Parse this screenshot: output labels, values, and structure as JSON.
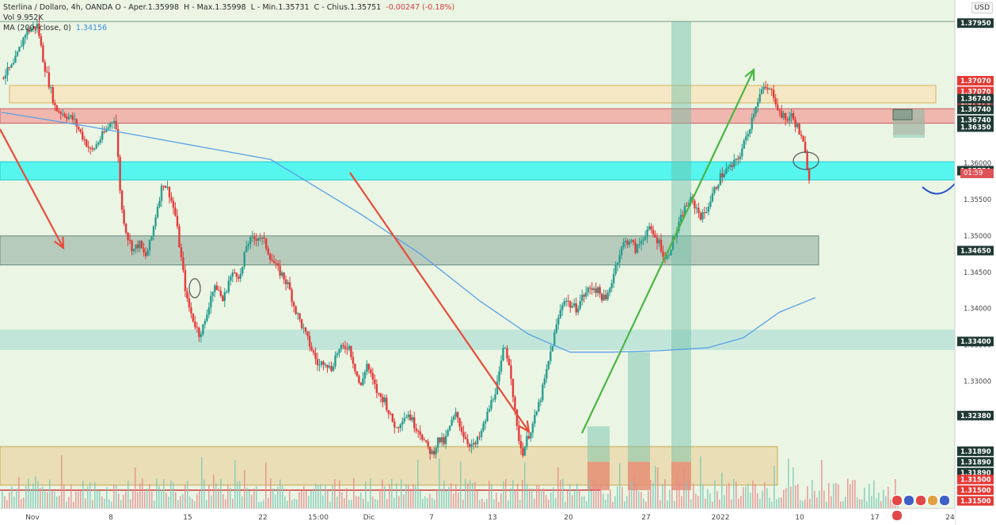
{
  "legend": {
    "symbol_line": "Sterlina / Dollaro, 4h, OANDA  O - Aper.",
    "open": "1.35998",
    "high_label": "H - Max.",
    "high": "1.35998",
    "low_label": "L - Min.",
    "low": "1.35731",
    "close_label": "C - Chius.",
    "close": "1.35751",
    "change": "-0.00247 (-0.18%)",
    "volume_label": "Vol",
    "volume": "9.952K",
    "ma_label": "MA (200, close, 0)",
    "ma_value": "1.34156"
  },
  "currency_label": "USD",
  "countdown": "01:59",
  "colors": {
    "up": "#2a9d8f",
    "down": "#e23b3b",
    "ma": "#5aa0e6",
    "bg": "#eaf5e4",
    "zone_cyan": "#3cf5f0",
    "zone_red": "#f0a8a0",
    "zone_sand": "#f8e2b8",
    "zone_gray": "#9ab3a6",
    "arrow_red": "#e84b3a",
    "arrow_green": "#4bb544"
  },
  "chart_data": {
    "type": "candlestick",
    "title": "Sterlina / Dollaro, 4h, OANDA",
    "ylim": [
      1.3125,
      1.3805
    ],
    "price_axis_ticks": [
      "1.36000",
      "1.35500",
      "1.35000",
      "1.34500",
      "1.34000",
      "1.33500",
      "1.33000",
      "1.32500",
      "1.32000"
    ],
    "price_axis_tags": [
      {
        "value": 1.3795,
        "label": "1.37950",
        "kind": "dark"
      },
      {
        "value": 1.3707,
        "label": "1.37070",
        "kind": "red"
      },
      {
        "value": 1.3707,
        "label": "1.37070",
        "kind": "red"
      },
      {
        "value": 1.3707,
        "label": "1.37070",
        "kind": "red"
      },
      {
        "value": 1.3674,
        "label": "1.36740",
        "kind": "dark"
      },
      {
        "value": 1.3674,
        "label": "1.36740",
        "kind": "dark"
      },
      {
        "value": 1.3674,
        "label": "1.36740",
        "kind": "dark"
      },
      {
        "value": 1.3635,
        "label": "1.36350",
        "kind": "dark"
      },
      {
        "value": 1.3575,
        "label": "1.35750",
        "kind": "dark"
      },
      {
        "value": 1.3465,
        "label": "1.34650",
        "kind": "dark"
      },
      {
        "value": 1.334,
        "label": "1.33400",
        "kind": "dark"
      },
      {
        "value": 1.3238,
        "label": "1.32380",
        "kind": "dark"
      },
      {
        "value": 1.3189,
        "label": "1.31890",
        "kind": "dark"
      },
      {
        "value": 1.3189,
        "label": "1.31890",
        "kind": "dark"
      },
      {
        "value": 1.3189,
        "label": "1.31890",
        "kind": "dark"
      },
      {
        "value": 1.315,
        "label": "1.31500",
        "kind": "red"
      },
      {
        "value": 1.315,
        "label": "1.31500",
        "kind": "red"
      },
      {
        "value": 1.315,
        "label": "1.31500",
        "kind": "red"
      }
    ],
    "x_ticks": [
      "Nov",
      "8",
      "15",
      "22",
      "15:00",
      "Dic",
      "7",
      "13",
      "20",
      "27",
      "2022",
      "10",
      "17",
      "24"
    ],
    "price_path": [
      [
        0,
        1.3718
      ],
      [
        2,
        1.3735
      ],
      [
        4,
        1.378
      ],
      [
        6,
        1.379
      ],
      [
        7,
        1.374
      ],
      [
        9,
        1.3675
      ],
      [
        12,
        1.366
      ],
      [
        14,
        1.363
      ],
      [
        15,
        1.3615
      ],
      [
        17,
        1.364
      ],
      [
        19,
        1.3665
      ],
      [
        20,
        1.354
      ],
      [
        21,
        1.35
      ],
      [
        22,
        1.348
      ],
      [
        23,
        1.349
      ],
      [
        24,
        1.347
      ],
      [
        25,
        1.3495
      ],
      [
        26,
        1.354
      ],
      [
        27,
        1.3575
      ],
      [
        28,
        1.356
      ],
      [
        29,
        1.353
      ],
      [
        30,
        1.347
      ],
      [
        31,
        1.341
      ],
      [
        32,
        1.3385
      ],
      [
        33,
        1.3365
      ],
      [
        34,
        1.338
      ],
      [
        35,
        1.342
      ],
      [
        36,
        1.343
      ],
      [
        37,
        1.341
      ],
      [
        38,
        1.344
      ],
      [
        39,
        1.345
      ],
      [
        40,
        1.3445
      ],
      [
        41,
        1.349
      ],
      [
        42,
        1.3495
      ],
      [
        43,
        1.35
      ],
      [
        44,
        1.349
      ],
      [
        45,
        1.347
      ],
      [
        46,
        1.3455
      ],
      [
        47,
        1.3445
      ],
      [
        48,
        1.343
      ],
      [
        49,
        1.34
      ],
      [
        50,
        1.338
      ],
      [
        51,
        1.336
      ],
      [
        52,
        1.334
      ],
      [
        53,
        1.332
      ],
      [
        54,
        1.333
      ],
      [
        55,
        1.3315
      ],
      [
        56,
        1.334
      ],
      [
        57,
        1.3345
      ],
      [
        58,
        1.335
      ],
      [
        59,
        1.332
      ],
      [
        60,
        1.329
      ],
      [
        61,
        1.3325
      ],
      [
        62,
        1.33
      ],
      [
        63,
        1.328
      ],
      [
        64,
        1.3275
      ],
      [
        65,
        1.325
      ],
      [
        66,
        1.3235
      ],
      [
        67,
        1.325
      ],
      [
        68,
        1.3255
      ],
      [
        69,
        1.324
      ],
      [
        70,
        1.323
      ],
      [
        71,
        1.321
      ],
      [
        72,
        1.32
      ],
      [
        73,
        1.322
      ],
      [
        74,
        1.3215
      ],
      [
        75,
        1.324
      ],
      [
        76,
        1.3255
      ],
      [
        77,
        1.323
      ],
      [
        78,
        1.3215
      ],
      [
        79,
        1.321
      ],
      [
        80,
        1.3225
      ],
      [
        81,
        1.325
      ],
      [
        82,
        1.3275
      ],
      [
        83,
        1.33
      ],
      [
        84,
        1.335
      ],
      [
        85,
        1.332
      ],
      [
        86,
        1.324
      ],
      [
        87,
        1.32
      ],
      [
        88,
        1.3225
      ],
      [
        89,
        1.3245
      ],
      [
        90,
        1.3275
      ],
      [
        91,
        1.331
      ],
      [
        92,
        1.335
      ],
      [
        93,
        1.3385
      ],
      [
        94,
        1.3415
      ],
      [
        95,
        1.3405
      ],
      [
        96,
        1.34
      ],
      [
        97,
        1.3415
      ],
      [
        98,
        1.3425
      ],
      [
        99,
        1.343
      ],
      [
        100,
        1.342
      ],
      [
        101,
        1.341
      ],
      [
        102,
        1.344
      ],
      [
        103,
        1.347
      ],
      [
        104,
        1.349
      ],
      [
        105,
        1.3495
      ],
      [
        106,
        1.348
      ],
      [
        107,
        1.3495
      ],
      [
        108,
        1.351
      ],
      [
        109,
        1.35
      ],
      [
        110,
        1.349
      ],
      [
        111,
        1.3465
      ],
      [
        112,
        1.349
      ],
      [
        113,
        1.351
      ],
      [
        114,
        1.3535
      ],
      [
        115,
        1.355
      ],
      [
        116,
        1.354
      ],
      [
        117,
        1.3525
      ],
      [
        118,
        1.354
      ],
      [
        119,
        1.356
      ],
      [
        120,
        1.358
      ],
      [
        121,
        1.359
      ],
      [
        122,
        1.3595
      ],
      [
        123,
        1.3605
      ],
      [
        124,
        1.3625
      ],
      [
        125,
        1.365
      ],
      [
        126,
        1.368
      ],
      [
        127,
        1.37
      ],
      [
        128,
        1.3702
      ],
      [
        129,
        1.3695
      ],
      [
        130,
        1.367
      ],
      [
        131,
        1.366
      ],
      [
        132,
        1.3665
      ],
      [
        133,
        1.365
      ],
      [
        134,
        1.3625
      ],
      [
        135,
        1.358
      ]
    ],
    "ma_200": [
      [
        0,
        1.367
      ],
      [
        15,
        1.365
      ],
      [
        25,
        1.3635
      ],
      [
        35,
        1.362
      ],
      [
        45,
        1.3605
      ],
      [
        52,
        1.357
      ],
      [
        60,
        1.353
      ],
      [
        70,
        1.3475
      ],
      [
        80,
        1.341
      ],
      [
        88,
        1.3365
      ],
      [
        95,
        1.334
      ],
      [
        102,
        1.334
      ],
      [
        110,
        1.3342
      ],
      [
        118,
        1.3346
      ],
      [
        124,
        1.336
      ],
      [
        130,
        1.3395
      ],
      [
        136,
        1.3415
      ]
    ],
    "x_range": [
      0,
      150
    ]
  }
}
